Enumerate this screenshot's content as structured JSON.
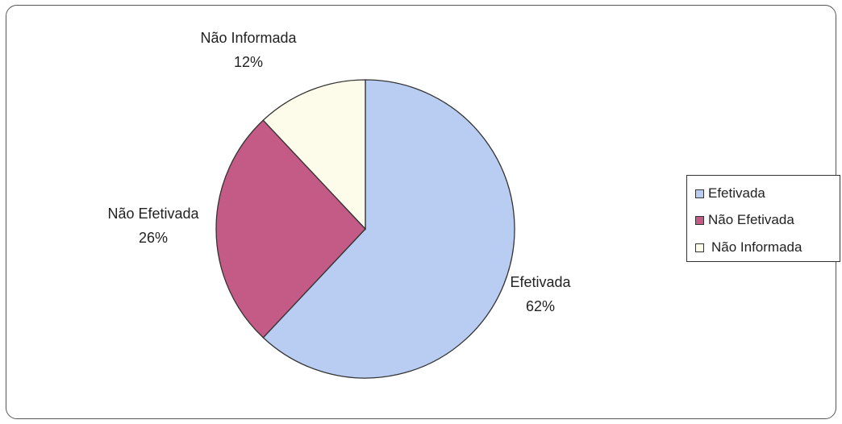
{
  "chart_data": {
    "type": "pie",
    "title": "",
    "start_angle_deg": 0,
    "direction": "clockwise",
    "slices": [
      {
        "label": "Efetivada",
        "value": 62,
        "value_label": "62%",
        "color": "#b9cdf2"
      },
      {
        "label": "Não Efetivada",
        "value": 26,
        "value_label": "26%",
        "color": "#c45a86"
      },
      {
        "label": "Não Informada",
        "value": 12,
        "value_label": "12%",
        "color": "#fdfbe9"
      }
    ],
    "legend": {
      "position": "right",
      "entries": [
        "Efetivada",
        "Não Efetivada",
        "Não Informada"
      ]
    },
    "border_color": "#333333"
  }
}
